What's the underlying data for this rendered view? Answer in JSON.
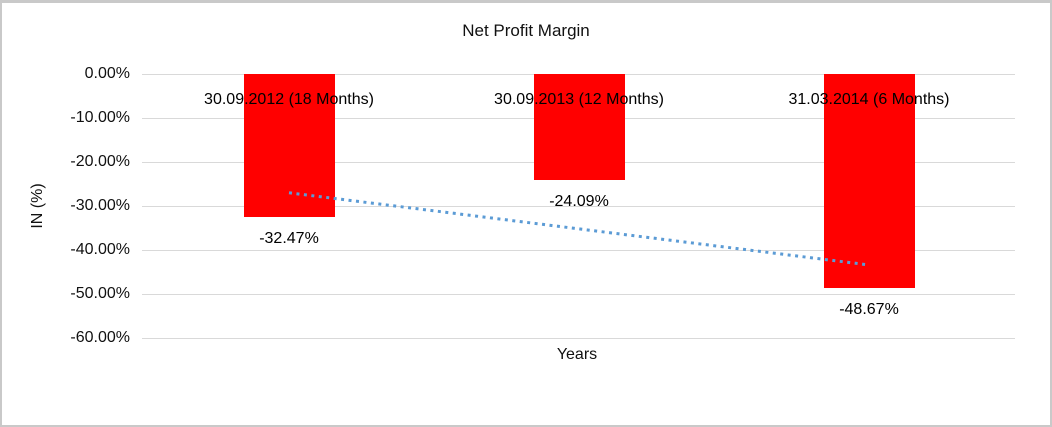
{
  "chart_data": {
    "type": "bar",
    "title": "Net Profit Margin",
    "xlabel": "Years",
    "ylabel": "IN (%)",
    "categories": [
      "30.09.2012 (18 Months)",
      "30.09.2013 (12 Months)",
      "31.03.2014 (6 Months)"
    ],
    "values": [
      -32.47,
      -24.09,
      -48.67
    ],
    "data_labels": [
      "-32.47%",
      "-24.09%",
      "-48.67%"
    ],
    "bar_color": "#ff0000",
    "ylim": [
      -60,
      0
    ],
    "y_ticks": [
      0,
      -10,
      -20,
      -30,
      -40,
      -50,
      -60
    ],
    "y_tick_labels": [
      "0.00%",
      "-10.00%",
      "-20.00%",
      "-30.00%",
      "-40.00%",
      "-50.00%",
      "-60.00%"
    ],
    "grid": true,
    "gridline_color": "#d9d9d9",
    "legend": "none",
    "trendline": {
      "type": "linear",
      "style": "dotted",
      "color": "#5b9bd5",
      "start_value": -27.0,
      "end_value": -43.4
    }
  }
}
